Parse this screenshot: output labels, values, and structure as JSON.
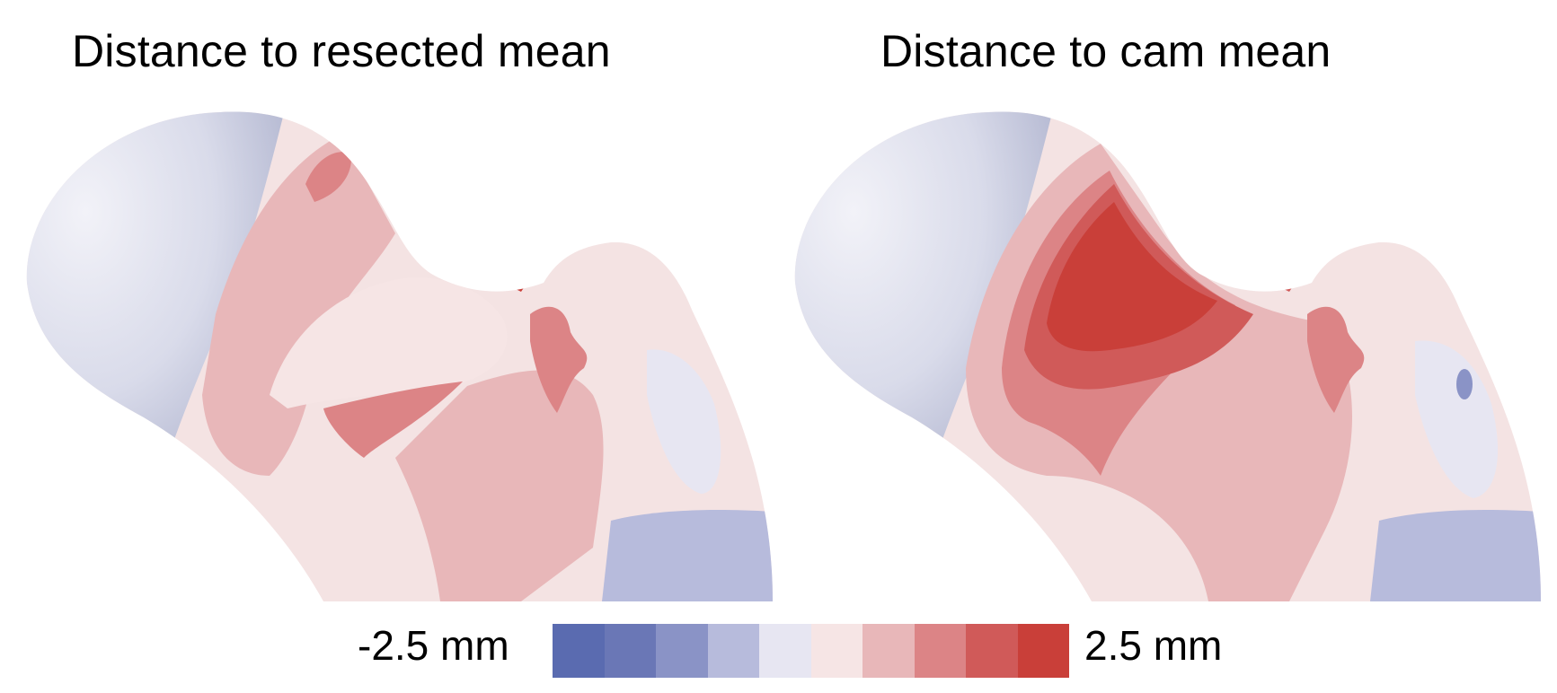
{
  "panels": [
    {
      "title": "Distance to resected mean"
    },
    {
      "title": "Distance to cam mean"
    }
  ],
  "colorbar": {
    "min_label": "-2.5 mm",
    "max_label": "2.5 mm",
    "colors": [
      "#5a6bb0",
      "#6a77b6",
      "#8a93c6",
      "#b7bbdc",
      "#e7e6f2",
      "#f6e5e5",
      "#e8b7b9",
      "#dc8486",
      "#d05a59",
      "#c93f39"
    ]
  },
  "colors": {
    "head_gray": "#e4e5ef",
    "bone_base": "#f4e3e3",
    "light_red": "#e8b7b9",
    "mid_red": "#dc8486",
    "strong_red": "#d05a59",
    "deep_red": "#c93f39",
    "light_blue": "#b7bbdc",
    "pale_lavender": "#e7e6f2"
  }
}
